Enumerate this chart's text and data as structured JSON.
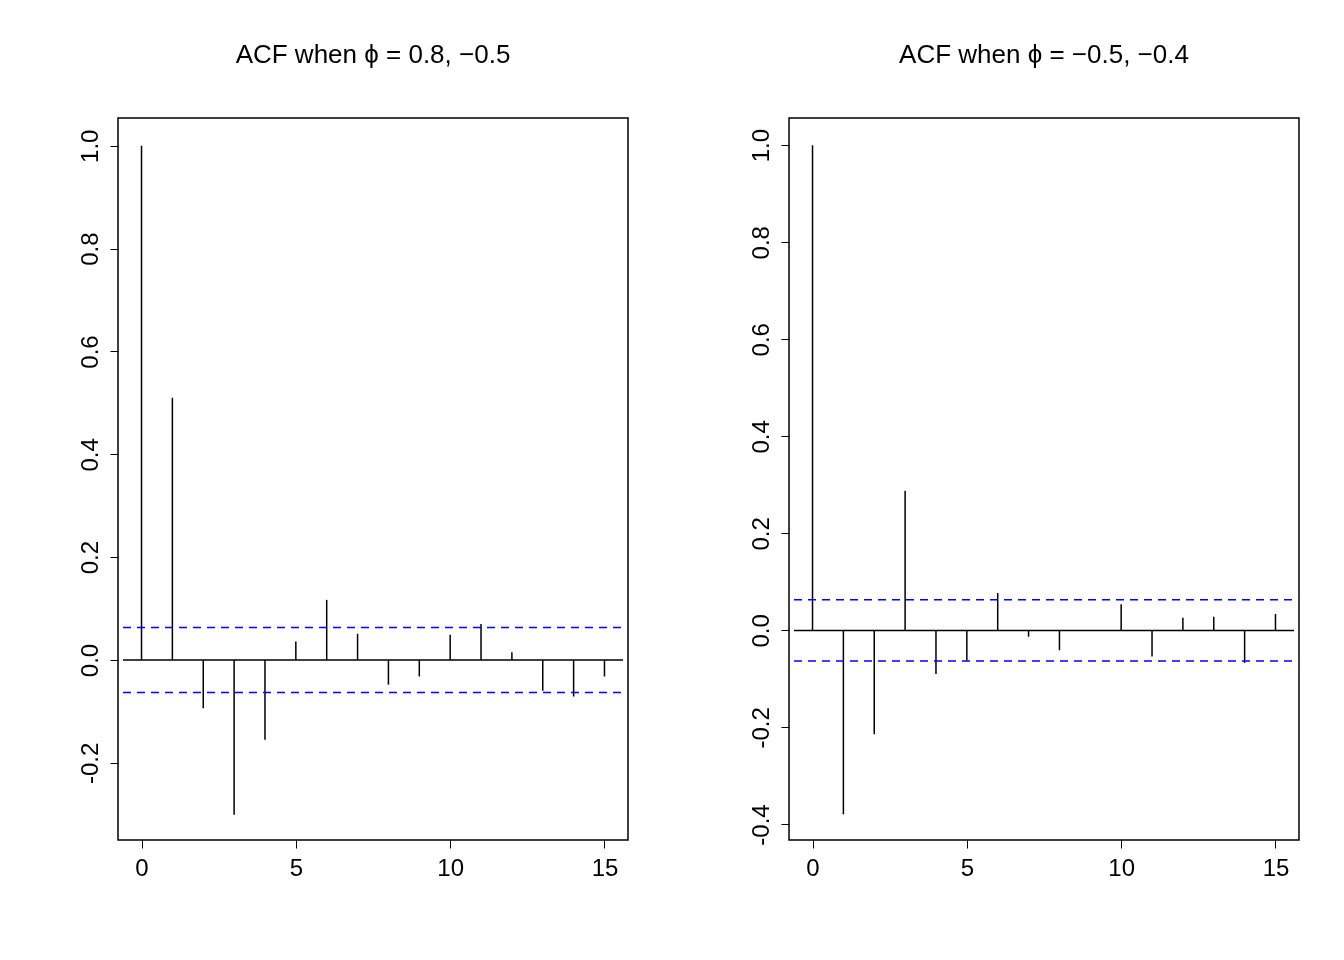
{
  "chart_data": [
    {
      "type": "bar",
      "title": "ACF when ϕ = 0.8, −0.5",
      "x": [
        0,
        1,
        2,
        3,
        4,
        5,
        6,
        7,
        8,
        9,
        10,
        11,
        12,
        13,
        14,
        15
      ],
      "series": [
        {
          "color": "#000000",
          "values": [
            1.0,
            0.51,
            -0.094,
            -0.301,
            -0.155,
            0.036,
            0.117,
            0.051,
            -0.048,
            -0.032,
            0.049,
            0.07,
            0.015,
            -0.06,
            -0.071,
            -0.032
          ]
        }
      ],
      "xlim": [
        -0.6,
        15.6
      ],
      "xticks": [
        0,
        5,
        10,
        15
      ],
      "ylim": [
        -0.35,
        1.054
      ],
      "yticks": [
        {
          "value": -0.2,
          "label": "-0.2"
        },
        {
          "value": 0,
          "label": "0.0"
        },
        {
          "value": 0.2,
          "label": "0.2"
        },
        {
          "value": 0.4,
          "label": "0.4"
        },
        {
          "value": 0.6,
          "label": "0.6"
        },
        {
          "value": 0.8,
          "label": "0.8"
        },
        {
          "value": 1,
          "label": "1.0"
        }
      ],
      "ref_lines": [
        {
          "axis": "y",
          "value": 0,
          "color": "#000000",
          "line_style": "solid"
        },
        {
          "axis": "y",
          "value": 0.063,
          "color": "#0000ff",
          "line_style": "dashed"
        },
        {
          "axis": "y",
          "value": -0.063,
          "color": "#0000ff",
          "line_style": "dashed"
        }
      ],
      "grid": false
    },
    {
      "type": "bar",
      "title": "ACF when ϕ = −0.5, −0.4",
      "x": [
        0,
        1,
        2,
        3,
        4,
        5,
        6,
        7,
        8,
        9,
        10,
        11,
        12,
        13,
        14,
        15
      ],
      "series": [
        {
          "color": "#000000",
          "values": [
            1.0,
            -0.379,
            -0.214,
            0.288,
            -0.09,
            -0.062,
            0.077,
            -0.013,
            -0.041,
            null,
            0.054,
            -0.054,
            0.026,
            0.028,
            -0.067,
            0.034
          ]
        }
      ],
      "xlim": [
        -0.6,
        15.6
      ],
      "xticks": [
        0,
        5,
        10,
        15
      ],
      "ylim": [
        -0.432,
        1.056
      ],
      "yticks": [
        {
          "value": -0.4,
          "label": "-0.4"
        },
        {
          "value": -0.2,
          "label": "-0.2"
        },
        {
          "value": 0,
          "label": "0.0"
        },
        {
          "value": 0.2,
          "label": "0.2"
        },
        {
          "value": 0.4,
          "label": "0.4"
        },
        {
          "value": 0.6,
          "label": "0.6"
        },
        {
          "value": 0.8,
          "label": "0.8"
        },
        {
          "value": 1,
          "label": "1.0"
        }
      ],
      "ref_lines": [
        {
          "axis": "y",
          "value": 0,
          "color": "#000000",
          "line_style": "solid"
        },
        {
          "axis": "y",
          "value": 0.063,
          "color": "#0000ff",
          "line_style": "dashed"
        },
        {
          "axis": "y",
          "value": -0.063,
          "color": "#0000ff",
          "line_style": "dashed"
        }
      ],
      "grid": false
    }
  ]
}
